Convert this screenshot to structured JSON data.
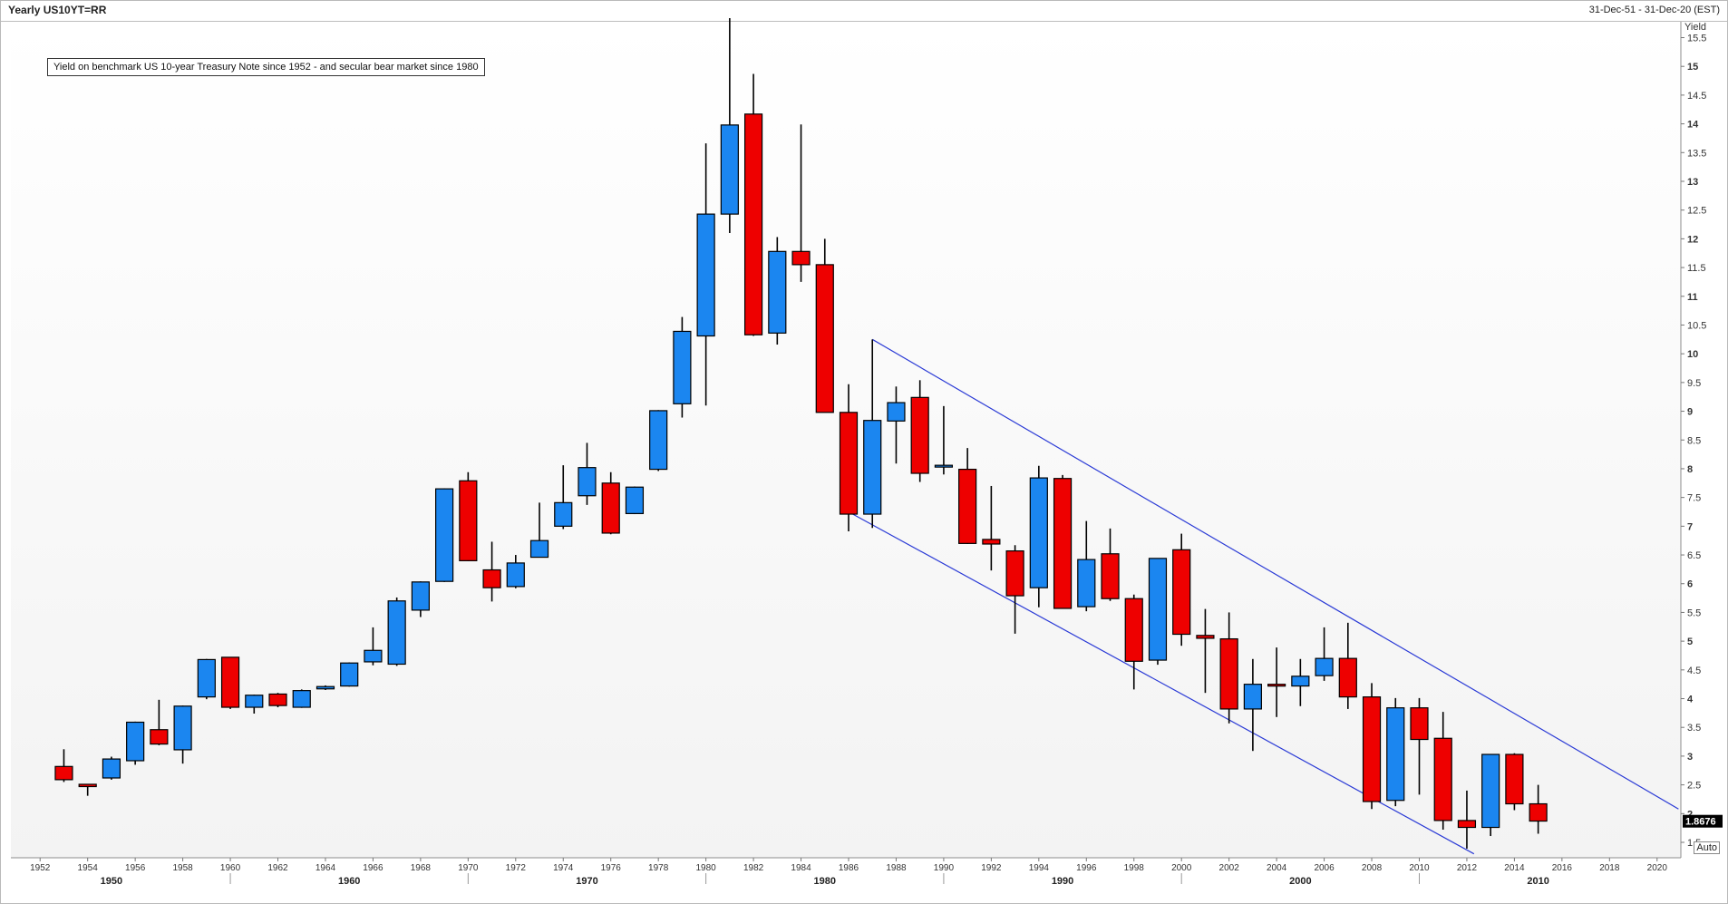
{
  "header": {
    "title": "Yearly US10YT=RR",
    "range": "31-Dec-51 - 31-Dec-20 (EST)"
  },
  "annotation": "Yield on benchmark US 10-year Treasury Note since 1952 - and secular bear market since 1980",
  "auto_label": "Auto",
  "colors": {
    "up": "#1b86f0",
    "down": "#ee0000",
    "channel": "#2b3bd6",
    "last_price_bg": "#000000"
  },
  "chart_data": {
    "type": "candlestick",
    "ylabel": "Yield",
    "ylim": [
      1.2,
      16
    ],
    "xlim": [
      1951,
      2021
    ],
    "y_ticks": [
      1.5,
      2,
      2.5,
      3,
      3.5,
      4,
      4.5,
      5,
      5.5,
      6,
      6.5,
      7,
      7.5,
      8,
      8.5,
      9,
      9.5,
      10,
      10.5,
      11,
      11.5,
      12,
      12.5,
      13,
      13.5,
      14,
      14.5,
      15,
      15.5
    ],
    "x_ticks": [
      1952,
      1954,
      1956,
      1958,
      1960,
      1962,
      1964,
      1966,
      1968,
      1970,
      1972,
      1974,
      1976,
      1978,
      1980,
      1982,
      1984,
      1986,
      1988,
      1990,
      1992,
      1994,
      1996,
      1998,
      2000,
      2002,
      2004,
      2006,
      2008,
      2010,
      2012,
      2014,
      2016,
      2018,
      2020
    ],
    "decades": [
      1950,
      1960,
      1970,
      1980,
      1990,
      2000,
      2010
    ],
    "last_price": "1.8676",
    "candles": [
      {
        "year": 1953,
        "open": 2.82,
        "high": 3.12,
        "low": 2.55,
        "close": 2.59
      },
      {
        "year": 1954,
        "open": 2.51,
        "high": 2.51,
        "low": 2.31,
        "close": 2.47
      },
      {
        "year": 1955,
        "open": 2.62,
        "high": 2.99,
        "low": 2.59,
        "close": 2.95
      },
      {
        "year": 1956,
        "open": 2.92,
        "high": 3.6,
        "low": 2.85,
        "close": 3.59
      },
      {
        "year": 1957,
        "open": 3.46,
        "high": 3.98,
        "low": 3.19,
        "close": 3.21
      },
      {
        "year": 1958,
        "open": 3.11,
        "high": 3.88,
        "low": 2.87,
        "close": 3.87
      },
      {
        "year": 1959,
        "open": 4.03,
        "high": 4.69,
        "low": 3.99,
        "close": 4.68
      },
      {
        "year": 1960,
        "open": 4.72,
        "high": 4.72,
        "low": 3.82,
        "close": 3.85
      },
      {
        "year": 1961,
        "open": 3.85,
        "high": 4.07,
        "low": 3.74,
        "close": 4.06
      },
      {
        "year": 1962,
        "open": 4.08,
        "high": 4.1,
        "low": 3.85,
        "close": 3.88
      },
      {
        "year": 1963,
        "open": 3.85,
        "high": 4.16,
        "low": 3.84,
        "close": 4.14
      },
      {
        "year": 1964,
        "open": 4.17,
        "high": 4.23,
        "low": 4.15,
        "close": 4.21
      },
      {
        "year": 1965,
        "open": 4.22,
        "high": 4.63,
        "low": 4.21,
        "close": 4.62
      },
      {
        "year": 1966,
        "open": 4.64,
        "high": 5.24,
        "low": 4.58,
        "close": 4.84
      },
      {
        "year": 1967,
        "open": 4.6,
        "high": 5.76,
        "low": 4.57,
        "close": 5.7
      },
      {
        "year": 1968,
        "open": 5.54,
        "high": 6.04,
        "low": 5.42,
        "close": 6.03
      },
      {
        "year": 1969,
        "open": 6.04,
        "high": 7.66,
        "low": 6.03,
        "close": 7.65
      },
      {
        "year": 1970,
        "open": 7.79,
        "high": 7.94,
        "low": 6.39,
        "close": 6.4
      },
      {
        "year": 1971,
        "open": 6.24,
        "high": 6.73,
        "low": 5.69,
        "close": 5.93
      },
      {
        "year": 1972,
        "open": 5.95,
        "high": 6.5,
        "low": 5.92,
        "close": 6.36
      },
      {
        "year": 1973,
        "open": 6.46,
        "high": 7.41,
        "low": 6.46,
        "close": 6.75
      },
      {
        "year": 1974,
        "open": 7.0,
        "high": 8.06,
        "low": 6.95,
        "close": 7.41
      },
      {
        "year": 1975,
        "open": 7.53,
        "high": 8.45,
        "low": 7.37,
        "close": 8.02
      },
      {
        "year": 1976,
        "open": 7.75,
        "high": 7.94,
        "low": 6.86,
        "close": 6.88
      },
      {
        "year": 1977,
        "open": 7.22,
        "high": 7.69,
        "low": 7.21,
        "close": 7.68
      },
      {
        "year": 1978,
        "open": 7.99,
        "high": 9.02,
        "low": 7.96,
        "close": 9.01
      },
      {
        "year": 1979,
        "open": 9.13,
        "high": 10.64,
        "low": 8.89,
        "close": 10.39
      },
      {
        "year": 1980,
        "open": 10.31,
        "high": 13.66,
        "low": 9.1,
        "close": 12.43
      },
      {
        "year": 1981,
        "open": 12.43,
        "high": 15.84,
        "low": 12.1,
        "close": 13.98
      },
      {
        "year": 1982,
        "open": 14.17,
        "high": 14.87,
        "low": 10.31,
        "close": 10.33
      },
      {
        "year": 1983,
        "open": 10.36,
        "high": 12.03,
        "low": 10.16,
        "close": 11.78
      },
      {
        "year": 1984,
        "open": 11.78,
        "high": 13.99,
        "low": 11.25,
        "close": 11.55
      },
      {
        "year": 1985,
        "open": 11.55,
        "high": 12.0,
        "low": 8.98,
        "close": 8.98
      },
      {
        "year": 1986,
        "open": 8.98,
        "high": 9.47,
        "low": 6.91,
        "close": 7.21
      },
      {
        "year": 1987,
        "open": 7.21,
        "high": 10.25,
        "low": 6.97,
        "close": 8.84
      },
      {
        "year": 1988,
        "open": 8.83,
        "high": 9.43,
        "low": 8.09,
        "close": 9.15
      },
      {
        "year": 1989,
        "open": 9.24,
        "high": 9.54,
        "low": 7.77,
        "close": 7.92
      },
      {
        "year": 1990,
        "open": 8.06,
        "high": 9.09,
        "low": 7.9,
        "close": 8.06
      },
      {
        "year": 1991,
        "open": 7.99,
        "high": 8.36,
        "low": 6.69,
        "close": 6.7
      },
      {
        "year": 1992,
        "open": 6.77,
        "high": 7.7,
        "low": 6.23,
        "close": 6.69
      },
      {
        "year": 1993,
        "open": 6.57,
        "high": 6.67,
        "low": 5.13,
        "close": 5.79
      },
      {
        "year": 1994,
        "open": 5.93,
        "high": 8.05,
        "low": 5.59,
        "close": 7.84
      },
      {
        "year": 1995,
        "open": 7.83,
        "high": 7.89,
        "low": 5.57,
        "close": 5.57
      },
      {
        "year": 1996,
        "open": 5.6,
        "high": 7.09,
        "low": 5.52,
        "close": 6.42
      },
      {
        "year": 1997,
        "open": 6.52,
        "high": 6.96,
        "low": 5.7,
        "close": 5.74
      },
      {
        "year": 1998,
        "open": 5.74,
        "high": 5.81,
        "low": 4.16,
        "close": 4.65
      },
      {
        "year": 1999,
        "open": 4.67,
        "high": 6.44,
        "low": 4.59,
        "close": 6.44
      },
      {
        "year": 2000,
        "open": 6.59,
        "high": 6.87,
        "low": 4.92,
        "close": 5.12
      },
      {
        "year": 2001,
        "open": 5.1,
        "high": 5.56,
        "low": 4.1,
        "close": 5.05
      },
      {
        "year": 2002,
        "open": 5.04,
        "high": 5.5,
        "low": 3.57,
        "close": 3.82
      },
      {
        "year": 2003,
        "open": 3.82,
        "high": 4.69,
        "low": 3.09,
        "close": 4.25
      },
      {
        "year": 2004,
        "open": 4.25,
        "high": 4.89,
        "low": 3.68,
        "close": 4.22
      },
      {
        "year": 2005,
        "open": 4.22,
        "high": 4.69,
        "low": 3.87,
        "close": 4.39
      },
      {
        "year": 2006,
        "open": 4.4,
        "high": 5.24,
        "low": 4.31,
        "close": 4.7
      },
      {
        "year": 2007,
        "open": 4.7,
        "high": 5.32,
        "low": 3.82,
        "close": 4.03
      },
      {
        "year": 2008,
        "open": 4.03,
        "high": 4.27,
        "low": 2.08,
        "close": 2.21
      },
      {
        "year": 2009,
        "open": 2.23,
        "high": 4.01,
        "low": 2.13,
        "close": 3.84
      },
      {
        "year": 2010,
        "open": 3.84,
        "high": 4.01,
        "low": 2.33,
        "close": 3.29
      },
      {
        "year": 2011,
        "open": 3.31,
        "high": 3.77,
        "low": 1.72,
        "close": 1.88
      },
      {
        "year": 2012,
        "open": 1.88,
        "high": 2.4,
        "low": 1.39,
        "close": 1.76
      },
      {
        "year": 2013,
        "open": 1.76,
        "high": 3.03,
        "low": 1.61,
        "close": 3.03
      },
      {
        "year": 2014,
        "open": 3.03,
        "high": 3.05,
        "low": 2.06,
        "close": 2.17
      },
      {
        "year": 2015,
        "open": 2.17,
        "high": 2.5,
        "low": 1.65,
        "close": 1.87
      }
    ],
    "channel": {
      "upper": {
        "from": [
          1987,
          10.25
        ],
        "to": [
          2020.9,
          2.08
        ]
      },
      "lower": {
        "from": [
          1986,
          7.25
        ],
        "to": [
          2012.3,
          1.3
        ]
      }
    }
  }
}
